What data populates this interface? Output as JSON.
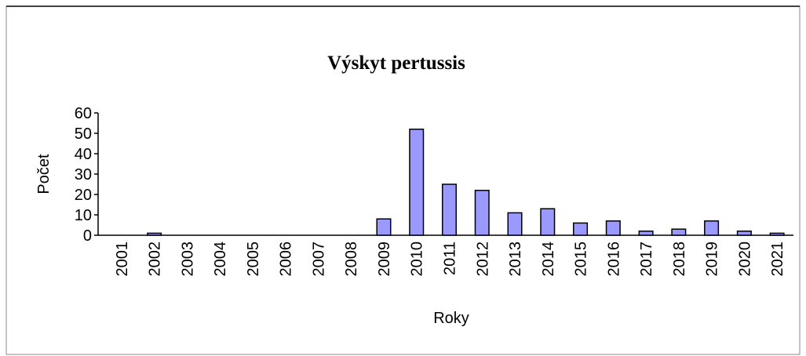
{
  "chart_data": {
    "type": "bar",
    "title": "Výskyt pertussis",
    "x_label": "Roky",
    "y_label": "Počet",
    "categories": [
      "2001",
      "2002",
      "2003",
      "2004",
      "2005",
      "2006",
      "2007",
      "2008",
      "2009",
      "2010",
      "2011",
      "2012",
      "2013",
      "2014",
      "2015",
      "2016",
      "2017",
      "2018",
      "2019",
      "2020",
      "2021"
    ],
    "values": [
      0,
      1,
      0,
      0,
      0,
      0,
      0,
      0,
      8,
      52,
      25,
      22,
      11,
      13,
      6,
      7,
      2,
      3,
      7,
      2,
      1
    ],
    "color": "#9999ff",
    "ylim": [
      0,
      60
    ],
    "yticks": [
      0,
      10,
      20,
      30,
      40,
      50,
      60
    ],
    "grid": false
  }
}
